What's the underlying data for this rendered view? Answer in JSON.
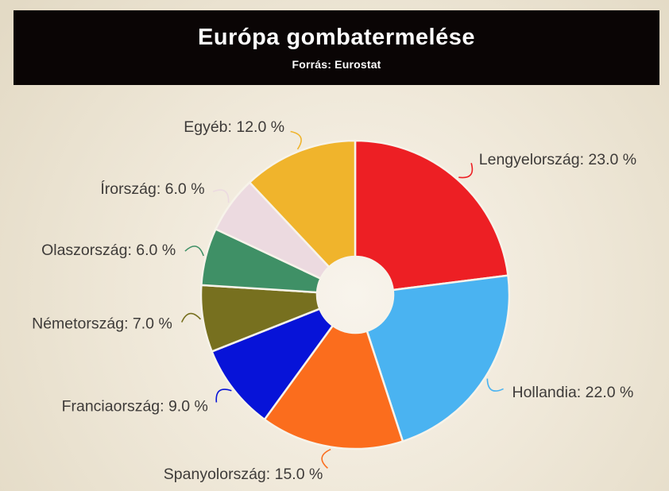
{
  "page": {
    "background_outer_color": "#e3dac5",
    "background_inner_color": "#f8f4ec"
  },
  "header": {
    "title": "Európa gombatermelése",
    "subtitle": "Forrás: Eurostat",
    "bar_color": "#0a0505",
    "text_color": "#fdfdfd"
  },
  "chart_data": {
    "type": "pie",
    "variant": "donut",
    "title": "Európa gombatermelése",
    "subtitle": "Forrás: Eurostat",
    "unit": "%",
    "direction": "clockwise",
    "start_angle": "12-oclock",
    "legend_position": "none",
    "label_style": "outside-callout",
    "slice_border_color": "#f7f3ea",
    "label_text_color": "#3e3b39",
    "categories": [
      "Lengyelország",
      "Hollandia",
      "Spanyolország",
      "Franciaország",
      "Németország",
      "Olaszország",
      "Írország",
      "Egyéb"
    ],
    "values": [
      23.0,
      22.0,
      15.0,
      9.0,
      7.0,
      6.0,
      6.0,
      12.0
    ],
    "colors": [
      "#ed1f24",
      "#4ab3f1",
      "#fb6d1d",
      "#0713d8",
      "#77701f",
      "#3f9066",
      "#ecdae0",
      "#f0b42c"
    ],
    "display_labels": [
      "Lengyelország: 23.0 %",
      "Hollandia: 22.0 %",
      "Spanyolország: 15.0 %",
      "Franciaország: 9.0 %",
      "Németország: 7.0 %",
      "Olaszország: 6.0 %",
      "Írország: 6.0 %",
      "Egyéb: 12.0 %"
    ]
  }
}
